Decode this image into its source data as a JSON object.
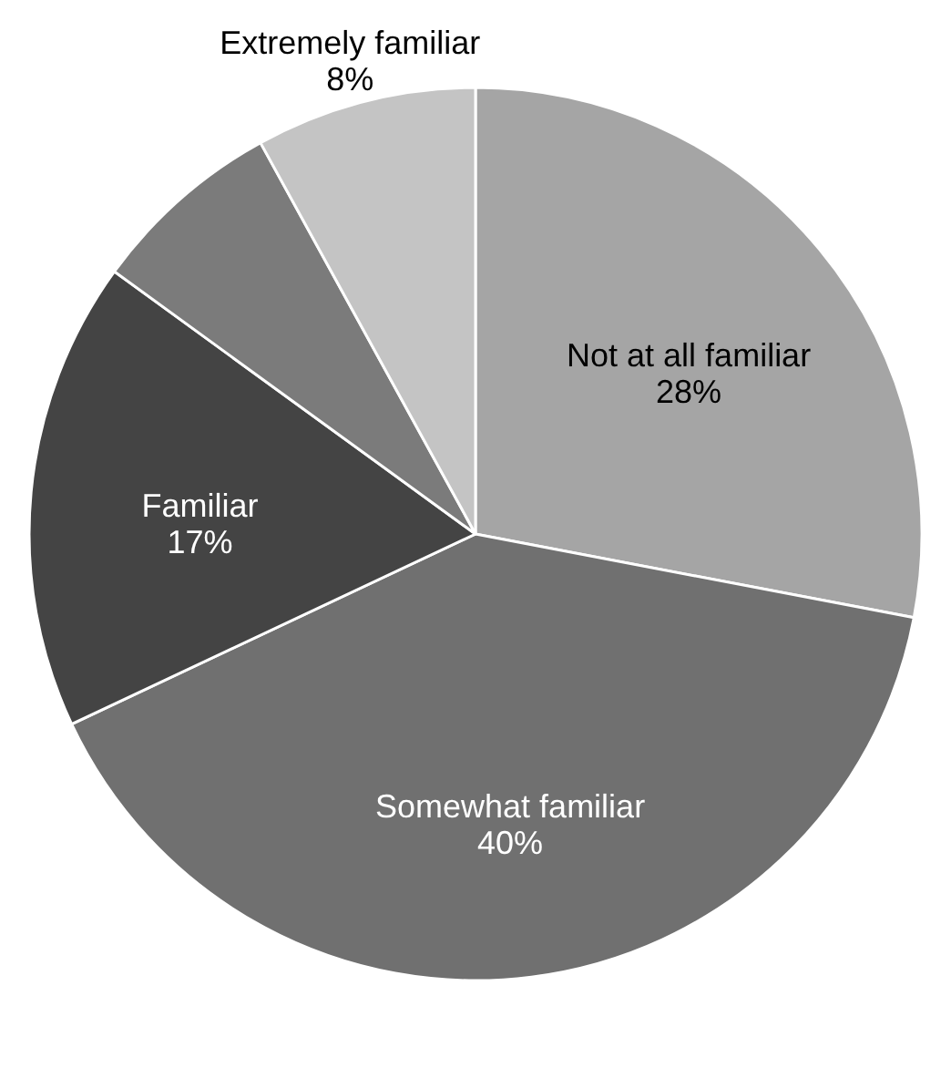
{
  "chart_data": {
    "type": "pie",
    "categories": [
      "Not at all familiar",
      "Somewhat familiar",
      "Familiar",
      null,
      "Extremely familiar"
    ],
    "values": [
      28,
      40,
      17,
      7,
      8
    ],
    "value_labels": [
      "28%",
      "40%",
      "17%",
      null,
      "8%"
    ],
    "colors": [
      "#a5a5a5",
      "#707070",
      "#444444",
      "#7b7b7b",
      "#c4c4c4"
    ]
  }
}
